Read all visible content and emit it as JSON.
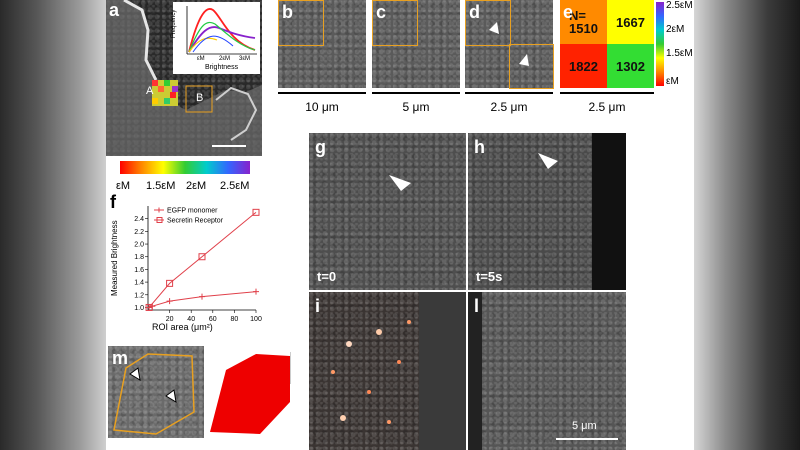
{
  "panels": {
    "a": {
      "label": "a",
      "roi_labels": [
        "A",
        "B"
      ]
    },
    "b": {
      "label": "b",
      "scale": "10 μm"
    },
    "c": {
      "label": "c",
      "scale": "5 μm"
    },
    "d": {
      "label": "d",
      "scale": "2.5 μm"
    },
    "e": {
      "label": "e",
      "scale": "2.5 μm",
      "cells": [
        "N=\n1510",
        "1667",
        "1822",
        "1302"
      ]
    },
    "g": {
      "label": "g",
      "time": "t=0"
    },
    "h": {
      "label": "h",
      "time": "t=5s"
    },
    "i": {
      "label": "i"
    },
    "l": {
      "label": "l",
      "scale": "5 μm"
    },
    "m": {
      "label": "m"
    },
    "f": {
      "label": "f"
    }
  },
  "inset_hist": {
    "ylabel": "Frequency",
    "xlabel": "Brightness",
    "ticks": [
      "εM",
      "2εM",
      "3εM"
    ]
  },
  "colorbar_h": {
    "ticks": [
      "εM",
      "1.5εM",
      "2εM",
      "2.5εM"
    ]
  },
  "colorbar_e": {
    "ticks": [
      "2.5εM",
      "2εM",
      "1.5εM",
      "εM"
    ]
  },
  "chart_data": {
    "type": "line",
    "title": "",
    "xlabel": "ROI area (μm²)",
    "ylabel": "Measured Brightness",
    "xlim": [
      0,
      100
    ],
    "ylim": [
      0.96,
      2.6
    ],
    "xticks": [
      20,
      40,
      60,
      80,
      100
    ],
    "yticks": [
      1.0,
      1.2,
      1.4,
      1.6,
      1.8,
      2.0,
      2.2,
      2.4
    ],
    "legend_position": "top-left",
    "series": [
      {
        "name": "EGFP monomer",
        "marker": "plus",
        "x": [
          1,
          4,
          20,
          50,
          100
        ],
        "y": [
          1.0,
          1.02,
          1.1,
          1.17,
          1.25
        ]
      },
      {
        "name": "Secretin Receptor",
        "marker": "square",
        "x": [
          1,
          20,
          50,
          100
        ],
        "y": [
          1.0,
          1.38,
          1.8,
          2.5
        ]
      }
    ],
    "color": "#e0404a"
  }
}
